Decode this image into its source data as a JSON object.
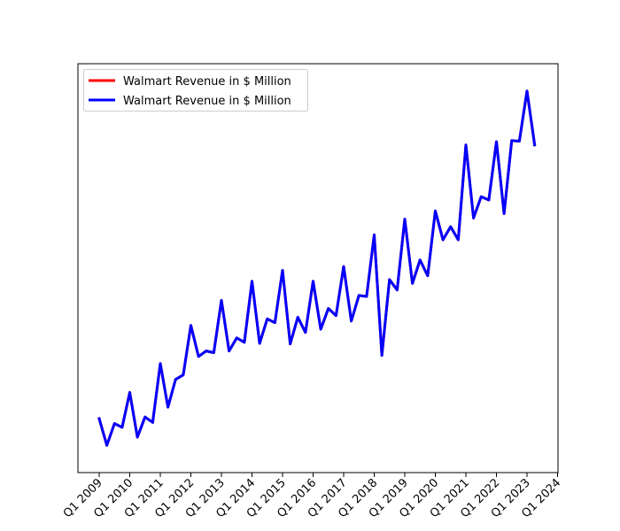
{
  "chart_data": {
    "type": "line",
    "title": "",
    "xlabel": "",
    "ylabel": "",
    "y_axis_labels_shown": false,
    "grid": false,
    "legend_position": "top-left",
    "tick_labels": [
      "Q1 2009",
      "Q1 2010",
      "Q1 2011",
      "Q1 2012",
      "Q1 2013",
      "Q1 2014",
      "Q1 2015",
      "Q1 2016",
      "Q1 2017",
      "Q1 2018",
      "Q1 2019",
      "Q1 2020",
      "Q1 2021",
      "Q1 2022",
      "Q1 2023",
      "Q1 2024"
    ],
    "x": [
      "Q1 2009",
      "Q2 2009",
      "Q3 2009",
      "Q4 2009",
      "Q1 2010",
      "Q2 2010",
      "Q3 2010",
      "Q4 2010",
      "Q1 2011",
      "Q2 2011",
      "Q3 2011",
      "Q4 2011",
      "Q1 2012",
      "Q2 2012",
      "Q3 2012",
      "Q4 2012",
      "Q1 2013",
      "Q2 2013",
      "Q3 2013",
      "Q4 2013",
      "Q1 2014",
      "Q2 2014",
      "Q3 2014",
      "Q4 2014",
      "Q1 2015",
      "Q2 2015",
      "Q3 2015",
      "Q4 2015",
      "Q1 2016",
      "Q2 2016",
      "Q3 2016",
      "Q4 2016",
      "Q1 2017",
      "Q2 2017",
      "Q3 2017",
      "Q4 2017",
      "Q1 2018",
      "Q2 2018",
      "Q3 2018",
      "Q4 2018",
      "Q1 2019",
      "Q2 2019",
      "Q3 2019",
      "Q4 2019",
      "Q1 2020",
      "Q2 2020",
      "Q3 2020",
      "Q4 2020",
      "Q1 2021",
      "Q2 2021",
      "Q3 2021",
      "Q4 2021",
      "Q1 2022",
      "Q2 2022",
      "Q3 2022",
      "Q4 2022",
      "Q1 2023",
      "Q2 2023"
    ],
    "series": [
      {
        "name": "Walmart Revenue in $ Million",
        "color": "#ff0000",
        "values": [
          99.4,
          94.5,
          98.5,
          97.8,
          104.2,
          96.0,
          99.7,
          98.7,
          109.5,
          101.5,
          106.6,
          107.4,
          116.5,
          110.8,
          111.8,
          111.5,
          121.1,
          111.8,
          114.2,
          113.4,
          124.6,
          113.2,
          117.7,
          117.0,
          126.6,
          113.1,
          118.0,
          115.2,
          124.6,
          115.8,
          119.6,
          118.3,
          127.3,
          117.3,
          122.0,
          121.8,
          133.1,
          111.0,
          124.9,
          123.0,
          136.0,
          124.2,
          128.5,
          125.6,
          137.5,
          132.2,
          134.6,
          132.2,
          149.6,
          136.2,
          140.1,
          139.5,
          150.2,
          137.0,
          150.4,
          150.3,
          159.5,
          149.6
        ]
      },
      {
        "name": "Walmart Revenue in $ Million",
        "color": "#0000ff",
        "values": [
          99.4,
          94.5,
          98.5,
          97.8,
          104.2,
          96.0,
          99.7,
          98.7,
          109.5,
          101.5,
          106.6,
          107.4,
          116.5,
          110.8,
          111.8,
          111.5,
          121.1,
          111.8,
          114.2,
          113.4,
          124.6,
          113.2,
          117.7,
          117.0,
          126.6,
          113.1,
          118.0,
          115.2,
          124.6,
          115.8,
          119.6,
          118.3,
          127.3,
          117.3,
          122.0,
          121.8,
          133.1,
          111.0,
          124.9,
          123.0,
          136.0,
          124.2,
          128.5,
          125.6,
          137.5,
          132.2,
          134.6,
          132.2,
          149.6,
          136.2,
          140.1,
          139.5,
          150.2,
          137.0,
          150.4,
          150.3,
          159.5,
          149.6
        ]
      }
    ],
    "ylim": [
      89.5,
      164.5
    ]
  }
}
